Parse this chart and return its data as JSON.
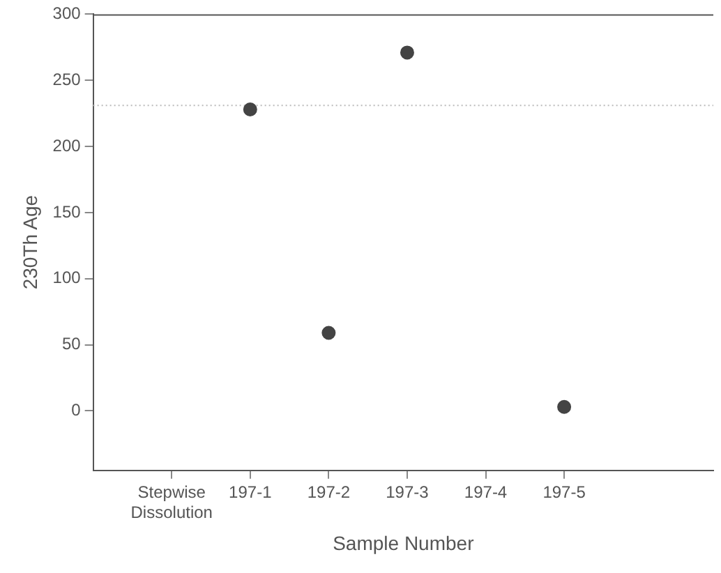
{
  "chart_data": {
    "type": "scatter",
    "xlabel": "Sample Number",
    "ylabel": "230Th Age",
    "categories": [
      "Stepwise Dissolution",
      "197-1",
      "197-2",
      "197-3",
      "197-4",
      "197-5"
    ],
    "series": [
      {
        "color": "#444444",
        "values": [
          null,
          228,
          59,
          271,
          null,
          3
        ]
      }
    ],
    "marker": "circle",
    "ylim": [
      -45,
      300
    ],
    "yticks": [
      0,
      50,
      100,
      150,
      200,
      250,
      300
    ],
    "grid": false,
    "legend": false,
    "ref_lines": [
      {
        "axis": "y",
        "value": 231,
        "color": "#bbbbbb",
        "line_style": "dotted"
      }
    ]
  }
}
